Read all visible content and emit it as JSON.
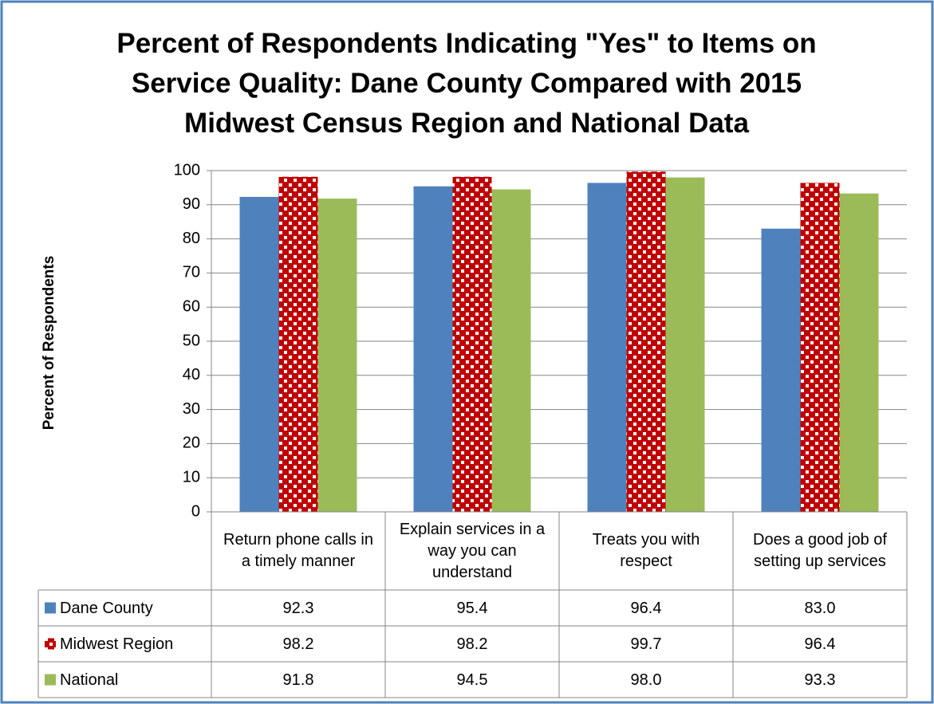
{
  "chart_data": {
    "type": "bar",
    "title": "Percent of Respondents Indicating \"Yes\" to Items on Service Quality:  Dane County Compared with 2015 Midwest Census Region and National Data",
    "y_label": "Percent of Respondents",
    "categories": [
      "Return phone calls in a timely manner",
      "Explain services in a way you can understand",
      "Treats you with respect",
      "Does a good job of setting up services"
    ],
    "series": [
      {
        "name": "Dane County",
        "color": "#4f81bd",
        "values": [
          92.3,
          95.4,
          96.4,
          83.0
        ],
        "value_labels": [
          "92.3",
          "95.4",
          "96.4",
          "83.0"
        ]
      },
      {
        "name": "Midwest Region",
        "color": "#c00000",
        "pattern": "dots",
        "values": [
          98.2,
          98.2,
          99.7,
          96.4
        ],
        "value_labels": [
          "98.2",
          "98.2",
          "99.7",
          "96.4"
        ]
      },
      {
        "name": "National",
        "color": "#9bbb59",
        "values": [
          91.8,
          94.5,
          98.0,
          93.3
        ],
        "value_labels": [
          "91.8",
          "94.5",
          "98.0",
          "93.3"
        ]
      }
    ],
    "ylim": [
      0,
      100
    ],
    "yticks": [
      0,
      10,
      20,
      30,
      40,
      50,
      60,
      70,
      80,
      90,
      100
    ],
    "grid": true,
    "data_table": true
  }
}
